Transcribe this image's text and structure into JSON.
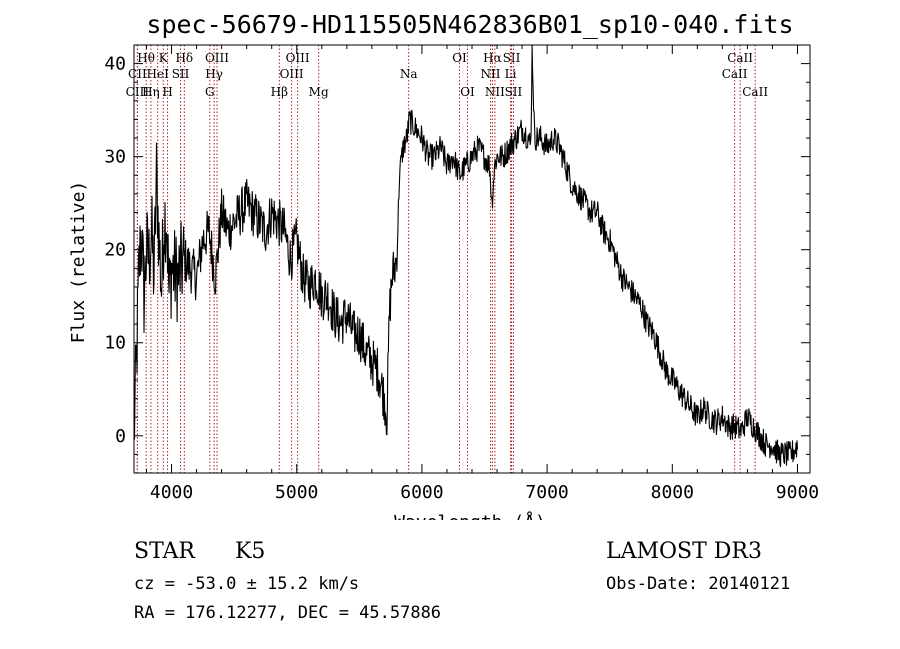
{
  "chart_data": {
    "type": "line",
    "title": "spec-56679-HD115505N462836B01_sp10-040.fits",
    "xlabel": "Wavelength (Å)",
    "ylabel": "Flux (relative)",
    "xlim": [
      3700,
      9100
    ],
    "ylim": [
      -4,
      42
    ],
    "xticks": [
      4000,
      5000,
      6000,
      7000,
      8000,
      9000
    ],
    "xtick_labels": [
      "4000",
      "5000",
      "6000",
      "7000",
      "8000",
      "9000"
    ],
    "yticks": [
      0,
      10,
      20,
      30,
      40
    ],
    "ytick_labels": [
      "0",
      "10",
      "20",
      "30",
      "40"
    ],
    "series": [
      {
        "name": "spectrum",
        "color": "#000000",
        "x": [
          3700,
          3720,
          3740,
          3760,
          3780,
          3800,
          3820,
          3840,
          3860,
          3880,
          3900,
          3920,
          3940,
          3960,
          3980,
          4000,
          4050,
          4100,
          4150,
          4200,
          4250,
          4300,
          4350,
          4400,
          4450,
          4500,
          4550,
          4600,
          4650,
          4700,
          4750,
          4800,
          4850,
          4900,
          4950,
          5000,
          5050,
          5100,
          5150,
          5200,
          5250,
          5300,
          5350,
          5400,
          5450,
          5500,
          5550,
          5600,
          5650,
          5700,
          5720,
          5740,
          5760,
          5780,
          5800,
          5820,
          5850,
          5880,
          5900,
          5950,
          6000,
          6050,
          6100,
          6150,
          6200,
          6250,
          6300,
          6350,
          6400,
          6450,
          6500,
          6540,
          6560,
          6580,
          6600,
          6650,
          6700,
          6750,
          6800,
          6850,
          6870,
          6880,
          6900,
          6950,
          7000,
          7050,
          7100,
          7150,
          7200,
          7250,
          7300,
          7350,
          7400,
          7450,
          7500,
          7550,
          7600,
          7650,
          7700,
          7750,
          7800,
          7850,
          7900,
          7950,
          8000,
          8050,
          8100,
          8150,
          8200,
          8250,
          8300,
          8350,
          8400,
          8450,
          8500,
          8550,
          8600,
          8650,
          8700,
          8750,
          8800,
          8850,
          8900,
          8950,
          9000
        ],
        "y": [
          0,
          8,
          18,
          22,
          15,
          20,
          19,
          22,
          17,
          28,
          21,
          16,
          23,
          24,
          15,
          18,
          17,
          19,
          18,
          17,
          21,
          22,
          17,
          24,
          22,
          23,
          24,
          25,
          24,
          23,
          22,
          24,
          23,
          22,
          19,
          21,
          17,
          16,
          17,
          15,
          15,
          13,
          12,
          13,
          11,
          11,
          9,
          8,
          7,
          4,
          2,
          13,
          17,
          18,
          19,
          28,
          31,
          32,
          34,
          33,
          32,
          30,
          30,
          31,
          29,
          30,
          28,
          29,
          30,
          31,
          30,
          29,
          25,
          29,
          30,
          30,
          31,
          32,
          33,
          32,
          31,
          42,
          32,
          32,
          31,
          32,
          31,
          29,
          27,
          26,
          25,
          24,
          24,
          22,
          21,
          19,
          17,
          16,
          15,
          14,
          12,
          11,
          9,
          7,
          6,
          5,
          4,
          3,
          2,
          3,
          2,
          1.5,
          2,
          1,
          1,
          0.5,
          2,
          1,
          0,
          -1,
          -1,
          -2,
          -2,
          -2,
          -1
        ]
      }
    ],
    "line_markers": [
      {
        "label": "Hθ",
        "wavelength": 3797,
        "row": 1
      },
      {
        "label": "CII",
        "wavelength": 3727,
        "row": 2
      },
      {
        "label": "CIII",
        "wavelength": 3727,
        "row": 3
      },
      {
        "label": "K",
        "wavelength": 3934,
        "row": 1
      },
      {
        "label": "HeI",
        "wavelength": 3889,
        "row": 2
      },
      {
        "label": "Hη",
        "wavelength": 3835,
        "row": 3
      },
      {
        "label": "Hδ",
        "wavelength": 4102,
        "row": 1
      },
      {
        "label": "SII",
        "wavelength": 4072,
        "row": 2
      },
      {
        "label": "H",
        "wavelength": 3968,
        "row": 3
      },
      {
        "label": "OIII",
        "wavelength": 4363,
        "row": 1
      },
      {
        "label": "Hγ",
        "wavelength": 4340,
        "row": 2
      },
      {
        "label": "G",
        "wavelength": 4305,
        "row": 3
      },
      {
        "label": "Hβ",
        "wavelength": 4861,
        "row": 3
      },
      {
        "label": "OIII",
        "wavelength": 4959,
        "row": 2
      },
      {
        "label": "OIII",
        "wavelength": 5007,
        "row": 1
      },
      {
        "label": "Mg",
        "wavelength": 5175,
        "row": 3
      },
      {
        "label": "Na",
        "wavelength": 5894,
        "row": 2
      },
      {
        "label": "OI",
        "wavelength": 6300,
        "row": 1
      },
      {
        "label": "OI",
        "wavelength": 6364,
        "row": 3
      },
      {
        "label": "Hα",
        "wavelength": 6563,
        "row": 1
      },
      {
        "label": "NII",
        "wavelength": 6548,
        "row": 2
      },
      {
        "label": "NII",
        "wavelength": 6583,
        "row": 3
      },
      {
        "label": "SII",
        "wavelength": 6716,
        "row": 1
      },
      {
        "label": "Li",
        "wavelength": 6708,
        "row": 2
      },
      {
        "label": "SII",
        "wavelength": 6731,
        "row": 3
      },
      {
        "label": "CaII",
        "wavelength": 8542,
        "row": 1
      },
      {
        "label": "CaII",
        "wavelength": 8498,
        "row": 2
      },
      {
        "label": "CaII",
        "wavelength": 8662,
        "row": 3
      }
    ],
    "grid": false,
    "legend": "none"
  },
  "info": {
    "class_label": "STAR",
    "subclass_label": "K5",
    "survey": "LAMOST DR3",
    "redshift": "cz = -53.0 ± 15.2 km/s",
    "obs_date": "Obs-Date: 20140121",
    "coords": "RA = 176.12277, DEC =  45.57886"
  },
  "colors": {
    "line_marker": "#b22222",
    "spectrum": "#000000"
  }
}
